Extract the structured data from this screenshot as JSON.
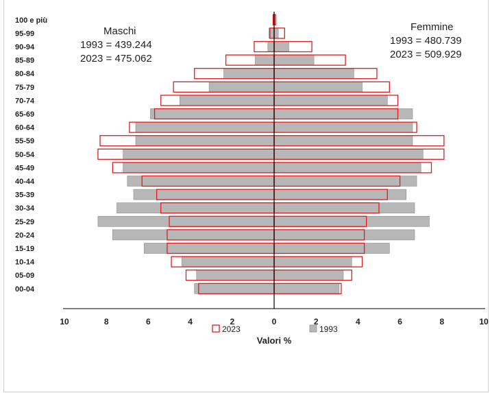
{
  "chart_data": {
    "type": "bar",
    "title": "",
    "xlabel": "Valori %",
    "ylabel": "",
    "xlim": [
      -10,
      10
    ],
    "x_ticks": [
      "10",
      "8",
      "6",
      "4",
      "2",
      "0",
      "2",
      "4",
      "6",
      "8",
      "10"
    ],
    "categories": [
      "100 e più",
      "95-99",
      "90-94",
      "85-89",
      "80-84",
      "75-79",
      "70-74",
      "65-69",
      "60-64",
      "55-59",
      "50-54",
      "45-49",
      "40-44",
      "35-39",
      "30-34",
      "25-29",
      "20-24",
      "15-19",
      "10-14",
      "05-09",
      "00-04"
    ],
    "series": [
      {
        "name": "2023",
        "style": "outline",
        "color": "#e31a1c",
        "male": [
          0.05,
          0.2,
          0.95,
          2.3,
          3.8,
          4.8,
          5.4,
          5.7,
          6.9,
          8.3,
          8.4,
          7.7,
          6.3,
          5.6,
          5.4,
          5.0,
          5.1,
          5.1,
          4.9,
          4.2,
          3.6
        ],
        "female": [
          0.07,
          0.5,
          1.8,
          3.4,
          4.9,
          5.5,
          5.9,
          5.9,
          6.8,
          8.1,
          8.1,
          7.5,
          6.0,
          5.4,
          5.0,
          4.4,
          4.3,
          4.3,
          4.2,
          3.7,
          3.2
        ]
      },
      {
        "name": "1993",
        "style": "filled",
        "color": "#b7b7b7",
        "male": [
          0.03,
          0.25,
          0.3,
          0.9,
          2.4,
          3.1,
          4.5,
          5.9,
          6.6,
          6.6,
          7.2,
          7.2,
          7.0,
          6.7,
          7.5,
          8.4,
          7.7,
          6.2,
          4.4,
          3.7,
          3.8
        ],
        "female": [
          0.03,
          0.2,
          0.7,
          1.9,
          3.8,
          4.2,
          5.4,
          6.6,
          6.6,
          6.6,
          7.1,
          7.0,
          6.8,
          6.3,
          6.7,
          7.4,
          6.7,
          5.5,
          3.7,
          3.3,
          3.1
        ]
      }
    ],
    "annotations": {
      "male_title": "Maschi",
      "male_1993": "1993 = 439.244",
      "male_2023": "2023 = 475.062",
      "female_title": "Femmine",
      "female_1993": "1993 = 480.739",
      "female_2023": "2023 = 509.929"
    },
    "legend": {
      "placement": "bottom",
      "items": [
        "2023",
        "1993"
      ]
    },
    "grid": false
  }
}
